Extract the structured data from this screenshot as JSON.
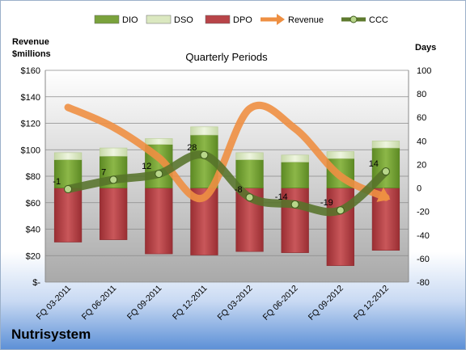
{
  "company": "Nutrisystem",
  "chart_data": {
    "type": "bar",
    "title": "Quarterly Periods",
    "left_axis_label": [
      "Revenue",
      "$millions"
    ],
    "right_axis_label": "Days",
    "categories": [
      "FQ 03-2011",
      "FQ 06-2011",
      "FQ 09-2011",
      "FQ 12-2011",
      "FQ 03-2012",
      "FQ 06-2012",
      "FQ 09-2012",
      "FQ 12-2012"
    ],
    "left_ticks": [
      "$-",
      "$20",
      "$40",
      "$60",
      "$80",
      "$100",
      "$120",
      "$140",
      "$160"
    ],
    "left_ylim": [
      0,
      160
    ],
    "right_ylim": [
      -80,
      100
    ],
    "right_ticks": [
      "-80",
      "-60",
      "-40",
      "-20",
      "0",
      "20",
      "40",
      "60",
      "80",
      "100"
    ],
    "grid": true,
    "legend_position": "top",
    "legend": [
      {
        "name": "DIO",
        "color": "#7aa23c",
        "kind": "bar"
      },
      {
        "name": "DSO",
        "color": "#dbe8c0",
        "kind": "bar"
      },
      {
        "name": "DPO",
        "color": "#b84448",
        "kind": "bar"
      },
      {
        "name": "Revenue",
        "color": "#ee8f42",
        "kind": "line"
      },
      {
        "name": "CCC",
        "color": "#5e7a2e",
        "kind": "marker-line"
      }
    ],
    "series": [
      {
        "name": "DIO",
        "axis": "right",
        "values": [
          24,
          27,
          37,
          45,
          24,
          22,
          25,
          34
        ]
      },
      {
        "name": "DSO",
        "axis": "right",
        "values": [
          6,
          7,
          5,
          7,
          6,
          6,
          6,
          6
        ]
      },
      {
        "name": "DPO",
        "axis": "right",
        "values": [
          -46,
          -44,
          -56,
          -57,
          -54,
          -55,
          -66,
          -53
        ]
      },
      {
        "name": "Revenue",
        "axis": "left",
        "values": [
          132,
          117,
          94,
          64,
          131,
          116,
          80,
          64
        ]
      },
      {
        "name": "CCC",
        "axis": "right",
        "values": [
          -1,
          7,
          12,
          28,
          -8,
          -14,
          -19,
          14
        ],
        "labels": [
          "-1",
          "7",
          "12",
          "28",
          "-8",
          "-14",
          "-19",
          "14"
        ]
      }
    ]
  }
}
